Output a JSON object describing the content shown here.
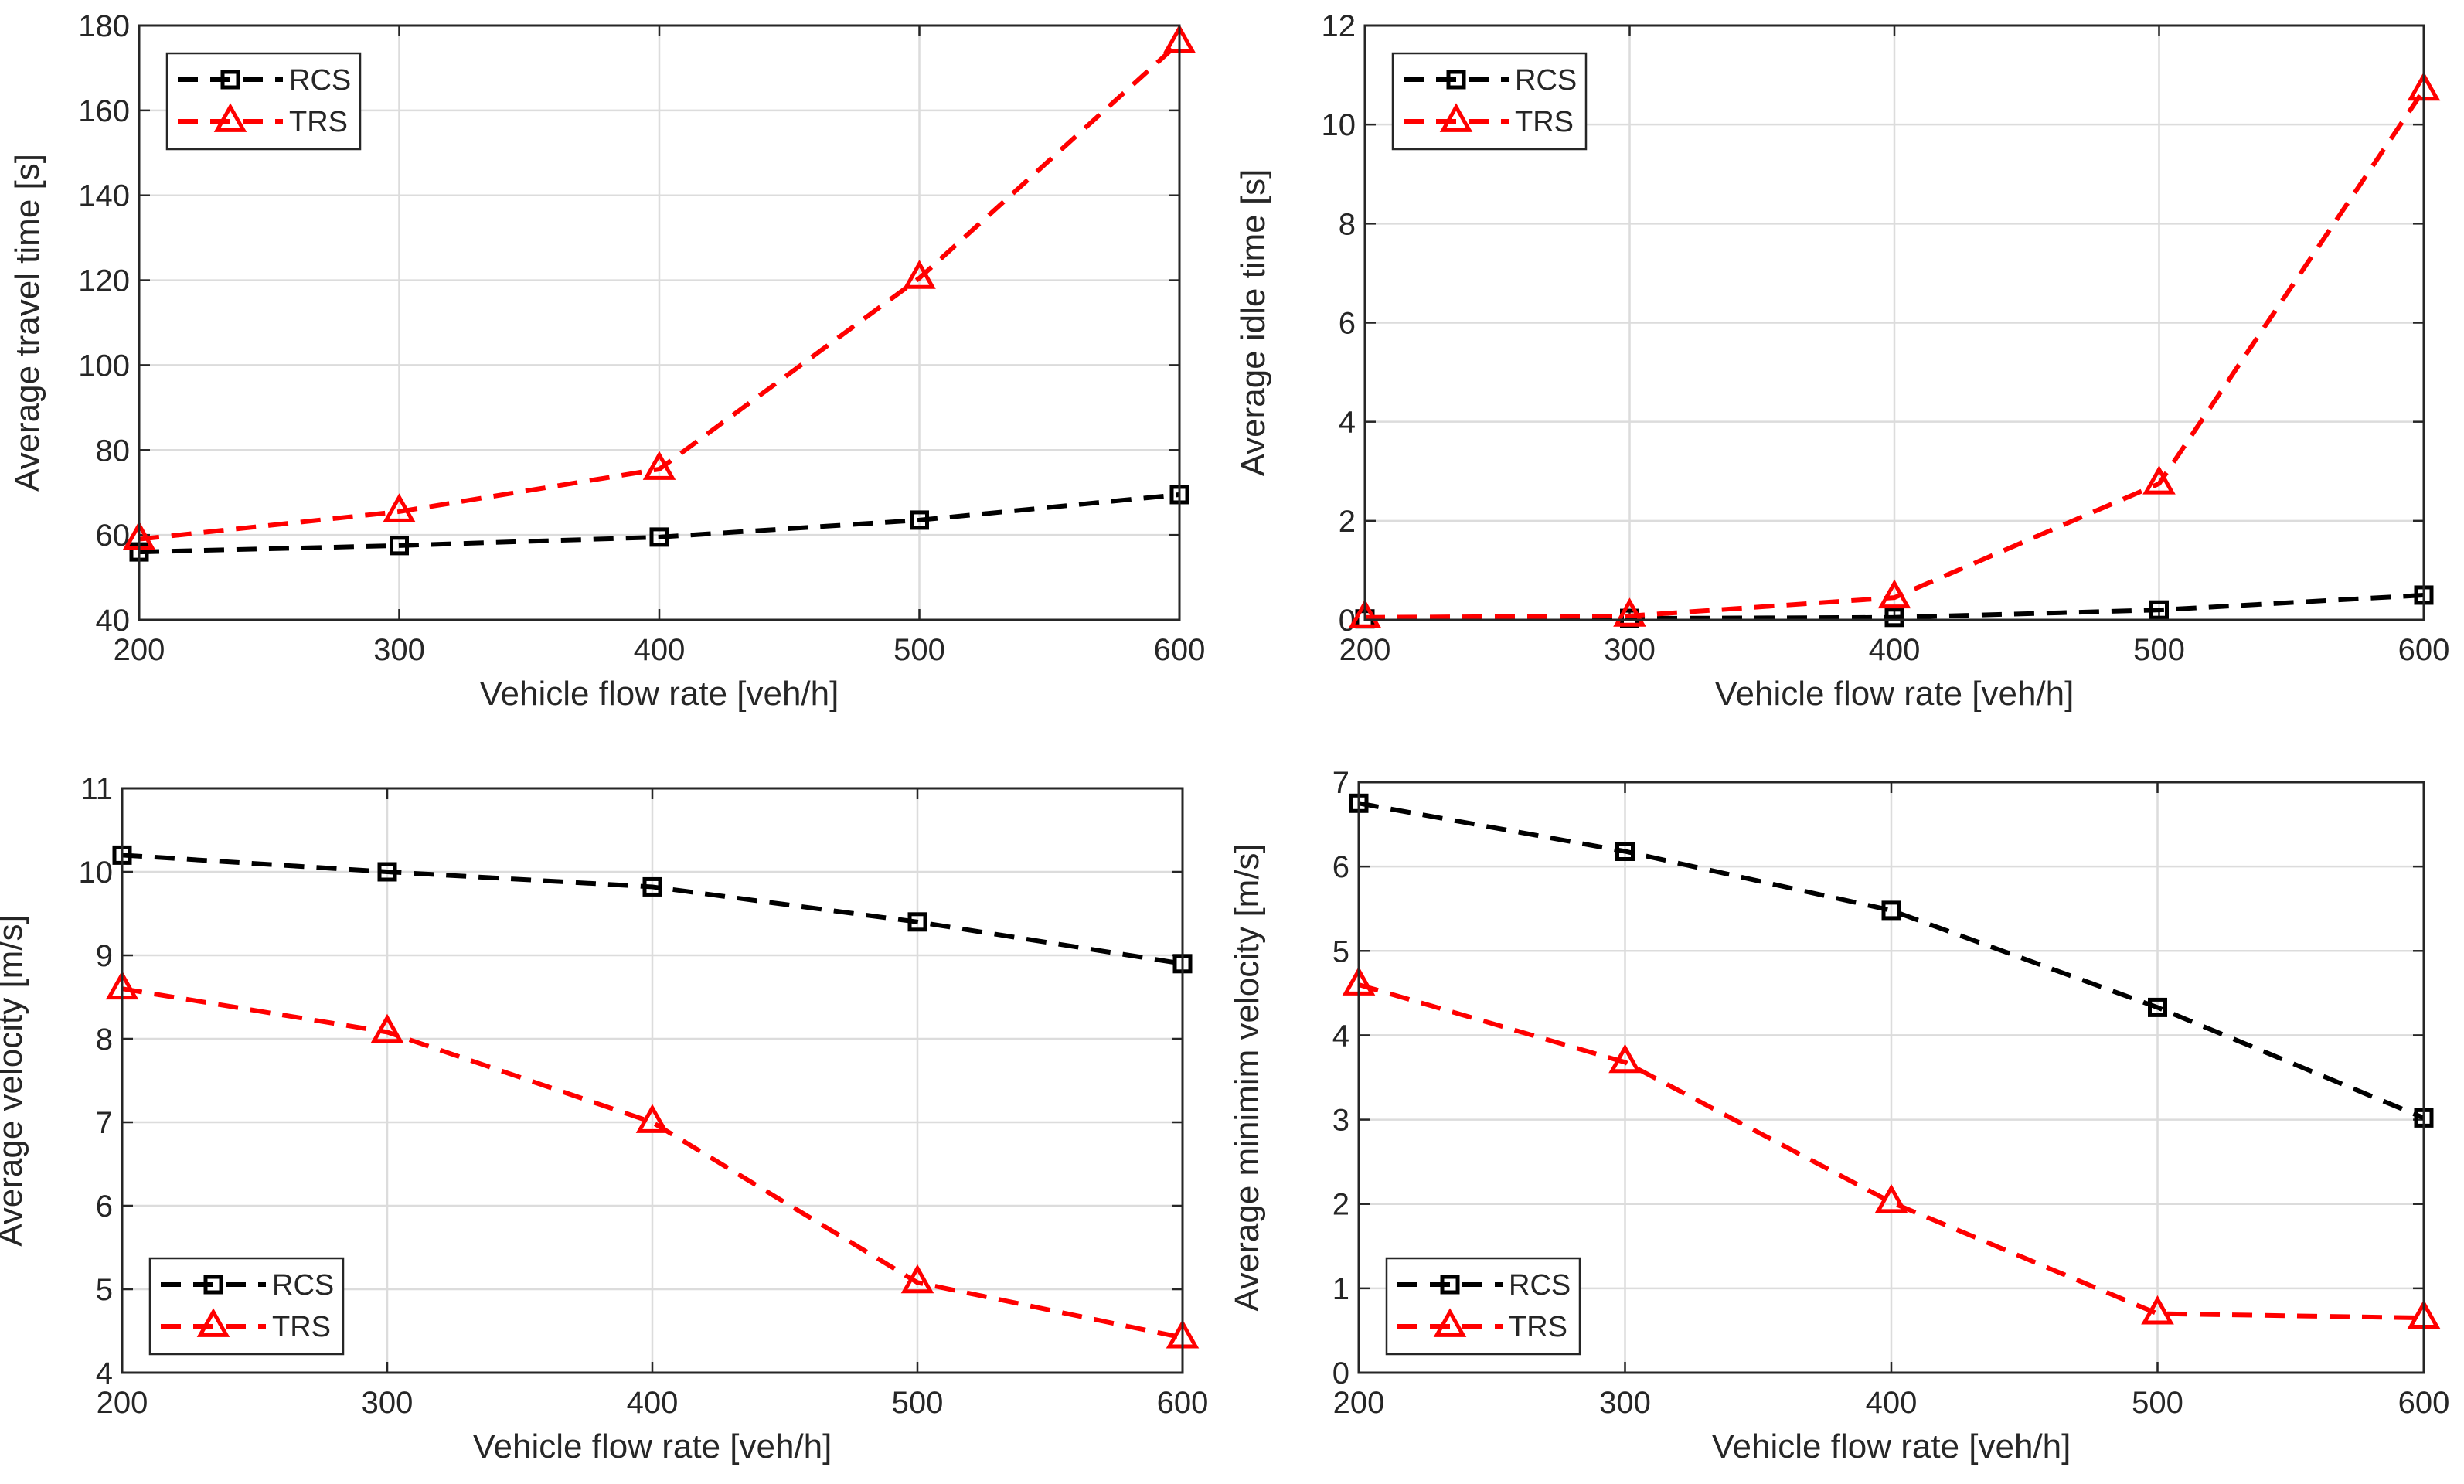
{
  "chart_data": [
    {
      "type": "line",
      "title": "",
      "xlabel": "Vehicle flow rate [veh/h]",
      "ylabel": "Average travel time [s]",
      "x": [
        200,
        300,
        400,
        500,
        600
      ],
      "xlim": [
        200,
        600
      ],
      "ylim": [
        40,
        180
      ],
      "xticks": [
        200,
        300,
        400,
        500,
        600
      ],
      "yticks": [
        40,
        60,
        80,
        100,
        120,
        140,
        160,
        180
      ],
      "grid": true,
      "legend_position": "top-left",
      "series": [
        {
          "name": "RCS",
          "color": "#000000",
          "marker": "square",
          "values": [
            56,
            57.5,
            59.5,
            63.5,
            69.5
          ]
        },
        {
          "name": "TRS",
          "color": "#ff0000",
          "marker": "triangle",
          "values": [
            59,
            65.5,
            75.5,
            120.5,
            176
          ]
        }
      ]
    },
    {
      "type": "line",
      "title": "",
      "xlabel": "Vehicle flow rate [veh/h]",
      "ylabel": "Average idle time [s]",
      "x": [
        200,
        300,
        400,
        500,
        600
      ],
      "xlim": [
        200,
        600
      ],
      "ylim": [
        0,
        12
      ],
      "xticks": [
        200,
        300,
        400,
        500,
        600
      ],
      "yticks": [
        0,
        2,
        4,
        6,
        8,
        10,
        12
      ],
      "grid": true,
      "legend_position": "top-left",
      "series": [
        {
          "name": "RCS",
          "color": "#000000",
          "marker": "square",
          "values": [
            0.02,
            0.03,
            0.05,
            0.2,
            0.5
          ]
        },
        {
          "name": "TRS",
          "color": "#ff0000",
          "marker": "triangle",
          "values": [
            0.05,
            0.08,
            0.45,
            2.75,
            10.7
          ]
        }
      ]
    },
    {
      "type": "line",
      "title": "",
      "xlabel": "Vehicle flow rate [veh/h]",
      "ylabel": "Average velocity [m/s]",
      "x": [
        200,
        300,
        400,
        500,
        600
      ],
      "xlim": [
        200,
        600
      ],
      "ylim": [
        4,
        11
      ],
      "xticks": [
        200,
        300,
        400,
        500,
        600
      ],
      "yticks": [
        4,
        5,
        6,
        7,
        8,
        9,
        10,
        11
      ],
      "grid": true,
      "legend_position": "bottom-left",
      "series": [
        {
          "name": "RCS",
          "color": "#000000",
          "marker": "square",
          "values": [
            10.2,
            10,
            9.82,
            9.4,
            8.9
          ]
        },
        {
          "name": "TRS",
          "color": "#ff0000",
          "marker": "triangle",
          "values": [
            8.6,
            8.08,
            7.0,
            5.08,
            4.42
          ]
        }
      ]
    },
    {
      "type": "line",
      "title": "",
      "xlabel": "Vehicle flow rate [veh/h]",
      "ylabel": "Average minimim velocity [m/s]",
      "x": [
        200,
        300,
        400,
        500,
        600
      ],
      "xlim": [
        200,
        600
      ],
      "ylim": [
        0,
        7
      ],
      "xticks": [
        200,
        300,
        400,
        500,
        600
      ],
      "yticks": [
        0,
        1,
        2,
        3,
        4,
        5,
        6,
        7
      ],
      "grid": true,
      "legend_position": "bottom-left",
      "series": [
        {
          "name": "RCS",
          "color": "#000000",
          "marker": "square",
          "values": [
            6.75,
            6.18,
            5.48,
            4.33,
            3.02
          ]
        },
        {
          "name": "TRS",
          "color": "#ff0000",
          "marker": "triangle",
          "values": [
            4.6,
            3.68,
            2.02,
            0.7,
            0.65
          ]
        }
      ]
    }
  ]
}
